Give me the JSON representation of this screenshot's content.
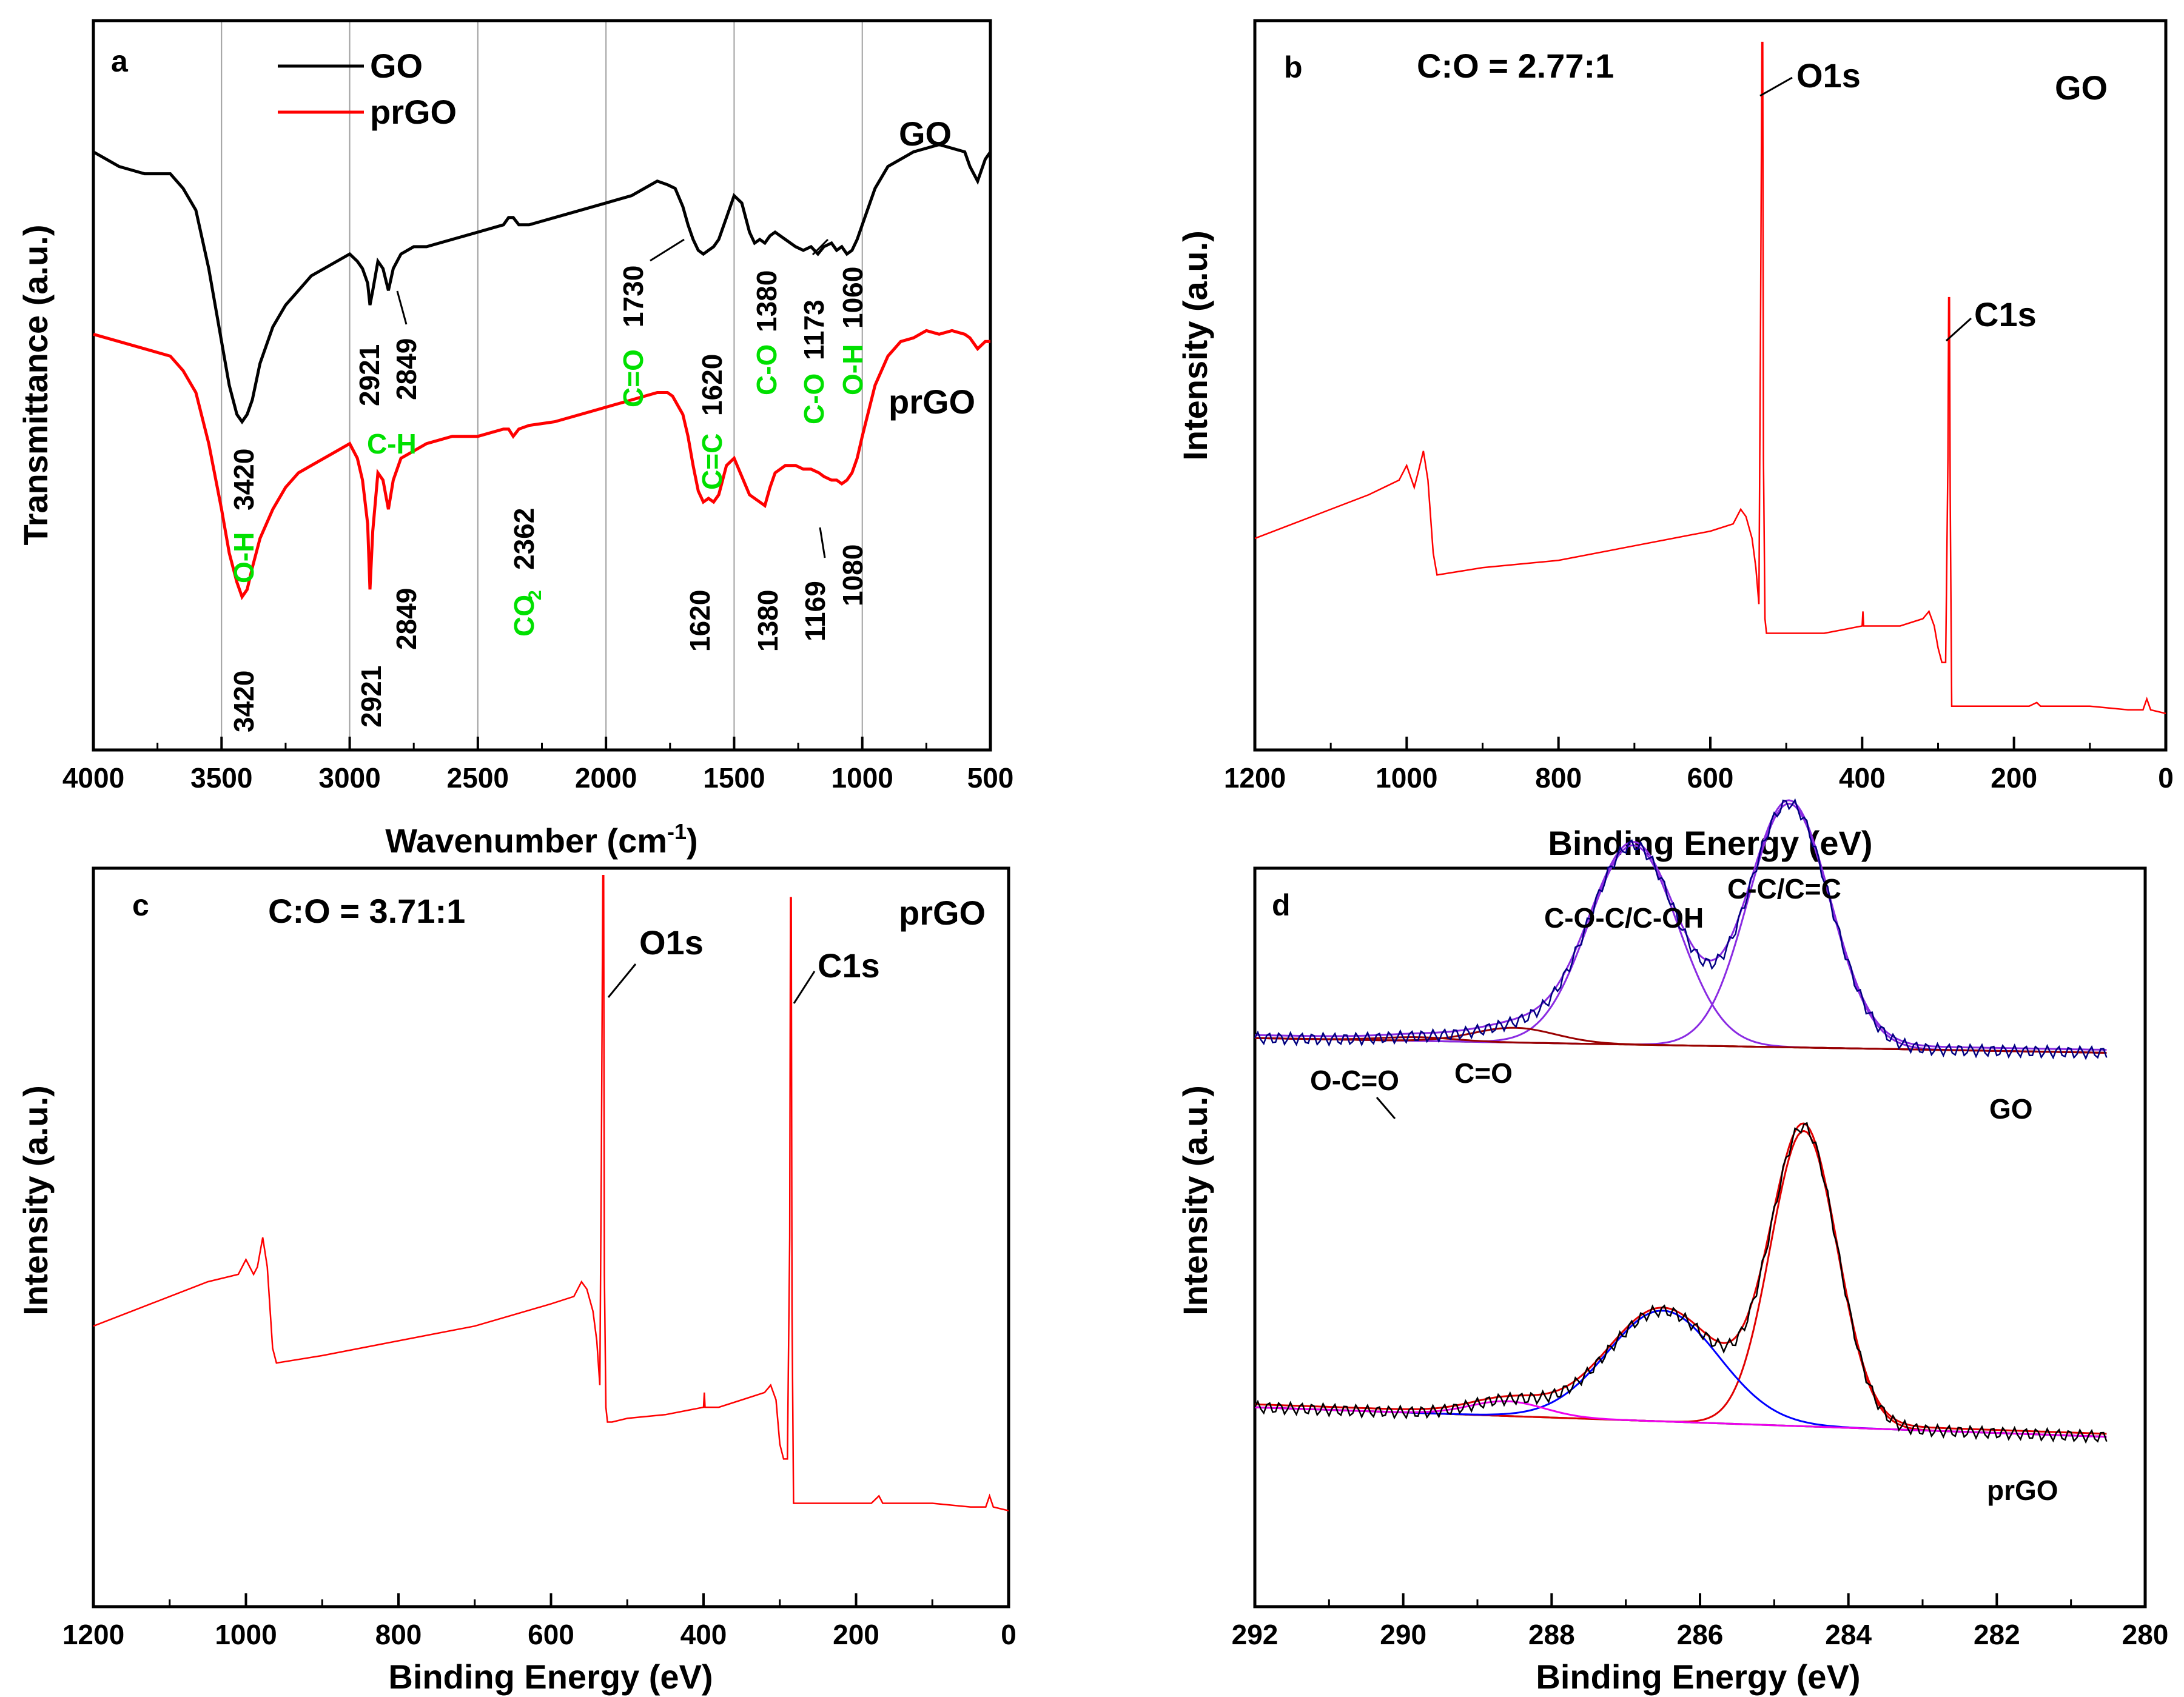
{
  "colors": {
    "go": "#000000",
    "prgo": "#ff0000",
    "annotation_green": "#00e000",
    "xps_survey": "#ff0000",
    "fit_blue": "#0000ff",
    "fit_purple": "#8a2be2",
    "fit_darkred": "#990000",
    "fit_red": "#e00000",
    "fit_magenta": "#ee00ee",
    "baseline_olive": "#999900",
    "baseline_green": "#008000"
  },
  "chart_data": [
    {
      "id": "a",
      "type": "line",
      "panel_label": "a",
      "xlabel_main": "Wavenumber (cm",
      "xlabel_sup": "-1",
      "xlabel_close": ")",
      "ylabel": "Transmittance (a.u.)",
      "xlim": [
        4000,
        500
      ],
      "ylim": [
        0,
        1
      ],
      "xticks": [
        "4000",
        "3500",
        "3000",
        "2500",
        "2000",
        "1500",
        "1000",
        "500"
      ],
      "xtick_values": [
        4000,
        3500,
        3000,
        2500,
        2000,
        1500,
        1000,
        500
      ],
      "gridlines_x": [
        3500,
        3000,
        2500,
        2000,
        1500,
        1000
      ],
      "legend": [
        "GO",
        "prGO"
      ],
      "series": [
        {
          "name": "GO",
          "color": "#000000",
          "x": [
            4000,
            3900,
            3800,
            3700,
            3650,
            3600,
            3550,
            3500,
            3470,
            3440,
            3420,
            3400,
            3380,
            3350,
            3300,
            3250,
            3200,
            3150,
            3100,
            3050,
            3000,
            2970,
            2950,
            2930,
            2921,
            2910,
            2890,
            2870,
            2849,
            2830,
            2800,
            2750,
            2700,
            2600,
            2500,
            2400,
            2380,
            2362,
            2340,
            2300,
            2200,
            2100,
            2000,
            1950,
            1900,
            1850,
            1800,
            1760,
            1730,
            1700,
            1680,
            1660,
            1640,
            1620,
            1600,
            1580,
            1560,
            1530,
            1500,
            1470,
            1440,
            1420,
            1400,
            1380,
            1360,
            1340,
            1300,
            1260,
            1230,
            1200,
            1173,
            1150,
            1120,
            1100,
            1080,
            1060,
            1040,
            1020,
            1000,
            950,
            900,
            850,
            800,
            750,
            700,
            650,
            600,
            580,
            550,
            520,
            500
          ],
          "y": [
            0.82,
            0.8,
            0.79,
            0.79,
            0.77,
            0.74,
            0.66,
            0.56,
            0.5,
            0.46,
            0.45,
            0.46,
            0.48,
            0.53,
            0.58,
            0.61,
            0.63,
            0.65,
            0.66,
            0.67,
            0.68,
            0.67,
            0.66,
            0.64,
            0.61,
            0.63,
            0.67,
            0.66,
            0.63,
            0.66,
            0.68,
            0.69,
            0.69,
            0.7,
            0.71,
            0.72,
            0.73,
            0.73,
            0.72,
            0.72,
            0.73,
            0.74,
            0.75,
            0.755,
            0.76,
            0.77,
            0.78,
            0.775,
            0.77,
            0.745,
            0.72,
            0.7,
            0.685,
            0.68,
            0.685,
            0.69,
            0.7,
            0.73,
            0.76,
            0.75,
            0.71,
            0.695,
            0.7,
            0.695,
            0.705,
            0.71,
            0.7,
            0.69,
            0.685,
            0.69,
            0.68,
            0.69,
            0.695,
            0.685,
            0.69,
            0.68,
            0.685,
            0.7,
            0.72,
            0.77,
            0.8,
            0.81,
            0.82,
            0.825,
            0.83,
            0.825,
            0.82,
            0.8,
            0.78,
            0.81,
            0.82
          ]
        },
        {
          "name": "prGO",
          "color": "#ff0000",
          "x": [
            4000,
            3900,
            3800,
            3700,
            3650,
            3600,
            3550,
            3500,
            3470,
            3440,
            3420,
            3400,
            3380,
            3350,
            3300,
            3250,
            3200,
            3150,
            3100,
            3050,
            3000,
            2970,
            2950,
            2930,
            2921,
            2910,
            2890,
            2870,
            2849,
            2830,
            2800,
            2750,
            2700,
            2600,
            2500,
            2400,
            2380,
            2362,
            2340,
            2300,
            2200,
            2100,
            2000,
            1900,
            1850,
            1800,
            1760,
            1740,
            1700,
            1680,
            1660,
            1640,
            1620,
            1600,
            1580,
            1560,
            1530,
            1500,
            1470,
            1440,
            1420,
            1400,
            1380,
            1360,
            1340,
            1300,
            1260,
            1230,
            1200,
            1169,
            1150,
            1120,
            1100,
            1080,
            1060,
            1040,
            1020,
            1000,
            950,
            900,
            850,
            800,
            750,
            700,
            650,
            600,
            580,
            550,
            520,
            500
          ],
          "y": [
            0.57,
            0.56,
            0.55,
            0.54,
            0.52,
            0.49,
            0.42,
            0.33,
            0.27,
            0.23,
            0.21,
            0.22,
            0.25,
            0.29,
            0.33,
            0.36,
            0.38,
            0.39,
            0.4,
            0.41,
            0.42,
            0.4,
            0.37,
            0.31,
            0.22,
            0.3,
            0.38,
            0.37,
            0.33,
            0.37,
            0.4,
            0.41,
            0.42,
            0.43,
            0.43,
            0.44,
            0.44,
            0.43,
            0.44,
            0.445,
            0.45,
            0.46,
            0.47,
            0.48,
            0.485,
            0.49,
            0.49,
            0.485,
            0.46,
            0.43,
            0.39,
            0.355,
            0.34,
            0.345,
            0.34,
            0.35,
            0.39,
            0.4,
            0.375,
            0.35,
            0.345,
            0.34,
            0.335,
            0.36,
            0.38,
            0.39,
            0.39,
            0.385,
            0.385,
            0.38,
            0.375,
            0.37,
            0.37,
            0.365,
            0.37,
            0.38,
            0.4,
            0.43,
            0.5,
            0.54,
            0.56,
            0.565,
            0.575,
            0.57,
            0.575,
            0.57,
            0.565,
            0.55,
            0.56,
            0.56
          ]
        }
      ],
      "annotations": {
        "go_label": "GO",
        "prgo_label": "prGO",
        "oh_label": "O-H",
        "v3420_top": "3420",
        "v2921_top": "2921",
        "v2849_top": "2849",
        "ch_label": "C-H",
        "co_eq_label": "C=O",
        "v1730": "1730",
        "cc_label": "C=C",
        "v1620_top": "1620",
        "co_label1": "C-O",
        "v1380_top": "1380",
        "co_label2": "C-O",
        "v1173": "1173",
        "oh_label2": "O-H",
        "v1060": "1060",
        "v3420_bot": "3420",
        "v2921_bot": "2921",
        "v2849_bot": "2849",
        "co2_label": "CO",
        "co2_sub": "2",
        "v2362": "2362",
        "v1620_bot": "1620",
        "v1380_bot": "1380",
        "v1169": "1169",
        "v1080": "1080"
      }
    },
    {
      "id": "b",
      "type": "line",
      "panel_label": "b",
      "title_ratio": "C:O = 2.77:1",
      "sample": "GO",
      "xlabel": "Binding Energy (eV)",
      "ylabel": "Intensity (a.u.)",
      "xlim": [
        1200,
        0
      ],
      "ylim": [
        0,
        1
      ],
      "xticks": [
        "1200",
        "1000",
        "800",
        "600",
        "400",
        "200",
        "0"
      ],
      "xtick_values": [
        1200,
        1000,
        800,
        600,
        400,
        200,
        0
      ],
      "peak_labels": [
        "O1s",
        "C1s"
      ],
      "series": [
        {
          "name": "GO survey",
          "color": "#ff0000",
          "x": [
            1200,
            1150,
            1100,
            1050,
            1010,
            1000,
            990,
            985,
            978,
            972,
            965,
            960,
            900,
            800,
            700,
            600,
            570,
            560,
            553,
            545,
            540,
            536,
            534,
            532,
            531,
            530,
            528,
            526,
            520,
            500,
            450,
            400,
            399,
            398,
            395,
            380,
            350,
            320,
            312,
            305,
            300,
            295,
            290,
            287,
            286,
            285,
            284,
            282,
            280,
            275,
            250,
            200,
            180,
            170,
            165,
            150,
            100,
            50,
            30,
            25,
            20,
            0
          ],
          "y": [
            0.29,
            0.31,
            0.33,
            0.35,
            0.37,
            0.39,
            0.36,
            0.38,
            0.41,
            0.37,
            0.27,
            0.24,
            0.25,
            0.26,
            0.28,
            0.3,
            0.31,
            0.33,
            0.32,
            0.29,
            0.25,
            0.2,
            0.55,
            0.97,
            0.97,
            0.4,
            0.18,
            0.16,
            0.16,
            0.16,
            0.16,
            0.17,
            0.19,
            0.17,
            0.17,
            0.17,
            0.17,
            0.18,
            0.19,
            0.17,
            0.14,
            0.12,
            0.12,
            0.4,
            0.62,
            0.62,
            0.35,
            0.06,
            0.06,
            0.06,
            0.06,
            0.06,
            0.06,
            0.065,
            0.06,
            0.06,
            0.06,
            0.055,
            0.055,
            0.07,
            0.055,
            0.05
          ]
        }
      ]
    },
    {
      "id": "c",
      "type": "line",
      "panel_label": "c",
      "title_ratio": "C:O = 3.71:1",
      "sample": "prGO",
      "xlabel": "Binding Energy (eV)",
      "ylabel": "Intensity (a.u.)",
      "xlim": [
        1200,
        0
      ],
      "ylim": [
        0,
        1
      ],
      "xticks": [
        "1200",
        "1000",
        "800",
        "600",
        "400",
        "200",
        "0"
      ],
      "xtick_values": [
        1200,
        1000,
        800,
        600,
        400,
        200,
        0
      ],
      "peak_labels": [
        "O1s",
        "C1s"
      ],
      "series": [
        {
          "name": "prGO survey",
          "color": "#ff0000",
          "x": [
            1200,
            1150,
            1100,
            1050,
            1010,
            1000,
            990,
            985,
            978,
            972,
            965,
            960,
            900,
            800,
            700,
            600,
            570,
            560,
            553,
            545,
            540,
            536,
            534,
            532,
            531,
            530,
            528,
            526,
            520,
            500,
            450,
            400,
            399,
            398,
            395,
            380,
            350,
            320,
            312,
            305,
            300,
            295,
            290,
            287,
            286,
            285,
            284,
            282,
            280,
            275,
            250,
            200,
            180,
            170,
            165,
            150,
            100,
            50,
            30,
            25,
            20,
            0
          ],
          "y": [
            0.38,
            0.4,
            0.42,
            0.44,
            0.45,
            0.47,
            0.45,
            0.46,
            0.5,
            0.46,
            0.35,
            0.33,
            0.34,
            0.36,
            0.38,
            0.41,
            0.42,
            0.44,
            0.43,
            0.4,
            0.36,
            0.3,
            0.6,
            0.99,
            0.99,
            0.45,
            0.27,
            0.25,
            0.25,
            0.255,
            0.26,
            0.27,
            0.29,
            0.27,
            0.27,
            0.27,
            0.28,
            0.29,
            0.3,
            0.28,
            0.22,
            0.2,
            0.2,
            0.5,
            0.96,
            0.96,
            0.4,
            0.14,
            0.14,
            0.14,
            0.14,
            0.14,
            0.14,
            0.15,
            0.14,
            0.14,
            0.14,
            0.135,
            0.135,
            0.15,
            0.135,
            0.13
          ]
        }
      ]
    },
    {
      "id": "d",
      "type": "line",
      "panel_label": "d",
      "xlabel": "Binding Energy (eV)",
      "ylabel": "Intensity (a.u.)",
      "xlim": [
        292,
        280
      ],
      "ylim": [
        0,
        1
      ],
      "xticks": [
        "292",
        "290",
        "288",
        "286",
        "284",
        "282",
        "280"
      ],
      "xtick_values": [
        292,
        290,
        288,
        286,
        284,
        282,
        280
      ],
      "labels": {
        "go": "GO",
        "prgo": "prGO",
        "occ": "O-C=O",
        "co": "C=O",
        "coc": "C-O-C/C-OH",
        "cc": "C-C/C=C"
      },
      "go_components": [
        {
          "name": "C-C/C=C",
          "center": 284.8,
          "height": 0.33,
          "width": 0.55,
          "color": "#8a2be2"
        },
        {
          "name": "C-O-C/C-OH",
          "center": 286.9,
          "height": 0.27,
          "width": 0.6,
          "color": "#8a2be2"
        },
        {
          "name": "C=O",
          "center": 288.5,
          "height": 0.02,
          "width": 0.55,
          "color": "#990000"
        },
        {
          "name": "O-C=O",
          "center": 289.8,
          "height": 0.005,
          "width": 0.5,
          "color": "#990000"
        }
      ],
      "go_baseline": [
        0.77,
        0.75
      ],
      "prgo_components": [
        {
          "name": "C-C/C=C",
          "center": 284.6,
          "height": 0.4,
          "width": 0.45,
          "color": "#e00000"
        },
        {
          "name": "C-O-C/C-OH",
          "center": 286.5,
          "height": 0.15,
          "width": 0.75,
          "color": "#0000ff"
        },
        {
          "name": "C=O",
          "center": 288.6,
          "height": 0.02,
          "width": 0.5,
          "color": "#ee00ee"
        }
      ],
      "prgo_baseline": [
        0.27,
        0.23
      ]
    }
  ]
}
